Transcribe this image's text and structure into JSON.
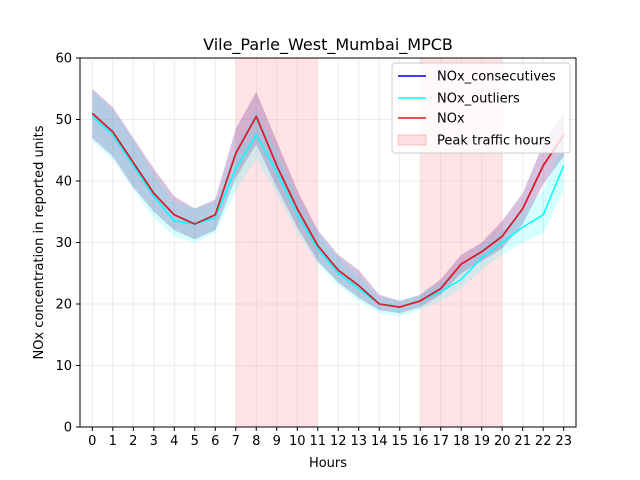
{
  "chart_data": {
    "type": "line",
    "title": "Vile_Parle_West_Mumbai_MPCB",
    "xlabel": "Hours",
    "ylabel": "NOx concentration in reported units",
    "xlim": [
      -0.6,
      23.6
    ],
    "ylim": [
      0,
      60
    ],
    "x": [
      0,
      1,
      2,
      3,
      4,
      5,
      6,
      7,
      8,
      9,
      10,
      11,
      12,
      13,
      14,
      15,
      16,
      17,
      18,
      19,
      20,
      21,
      22,
      23
    ],
    "x_tick_labels": [
      "0",
      "1",
      "2",
      "3",
      "4",
      "5",
      "6",
      "7",
      "8",
      "9",
      "10",
      "11",
      "12",
      "13",
      "14",
      "15",
      "16",
      "17",
      "18",
      "19",
      "20",
      "21",
      "22",
      "23"
    ],
    "y_ticks": [
      0,
      10,
      20,
      30,
      40,
      50,
      60
    ],
    "y_tick_labels": [
      "0",
      "10",
      "20",
      "30",
      "40",
      "50",
      "60"
    ],
    "grid": true,
    "legend_position": "top-right",
    "peak_hours": [
      [
        7,
        11
      ],
      [
        16,
        20
      ]
    ],
    "series": [
      {
        "name": "NOx_consecutives",
        "color": "#0000ff",
        "values": [
          51,
          48,
          43,
          38,
          34.5,
          33,
          34.5,
          44.5,
          50.5,
          42.5,
          35.5,
          29.5,
          25.5,
          23,
          20,
          19.5,
          20.5,
          22.5,
          26.5,
          28.5,
          31,
          35.5,
          42.5,
          47.5
        ],
        "lower": [
          47,
          44,
          39,
          35,
          32,
          30.5,
          32,
          40.5,
          46,
          39,
          32.5,
          27,
          23.5,
          21,
          19,
          18.5,
          19.5,
          21.5,
          25,
          27,
          29,
          33,
          39.5,
          44
        ],
        "upper": [
          55,
          52,
          47,
          42,
          37.5,
          35.5,
          37,
          48.5,
          54.5,
          46.5,
          38.5,
          32,
          28,
          25.5,
          21.5,
          20.5,
          21.5,
          24,
          28,
          30,
          33.5,
          38,
          46,
          51
        ]
      },
      {
        "name": "NOx_outliers",
        "color": "#00ffff",
        "values": [
          50.5,
          47.5,
          42.5,
          37.5,
          33.5,
          33,
          34,
          42,
          47.5,
          41.5,
          34.5,
          29,
          25,
          22.5,
          20,
          19.5,
          20.5,
          22,
          24,
          27.5,
          30,
          32.5,
          34.5,
          42.5
        ],
        "lower": [
          46.5,
          43.5,
          38.5,
          34,
          31,
          30,
          31.5,
          38.5,
          43.5,
          38,
          31.5,
          26.5,
          23,
          20.5,
          18.5,
          18,
          19,
          20.5,
          22.5,
          25.5,
          28,
          30,
          31.5,
          38.5
        ],
        "upper": [
          54.5,
          51.5,
          46.5,
          41,
          36.5,
          35.5,
          36.5,
          45.5,
          51.5,
          45,
          37.5,
          31.5,
          27.5,
          24.5,
          21,
          20.5,
          21.5,
          23.5,
          26,
          29.5,
          32,
          35,
          38.5,
          46.5
        ]
      },
      {
        "name": "NOx",
        "color": "#e41a1c",
        "values": [
          51,
          48,
          43,
          38,
          34.5,
          33,
          34.5,
          44.5,
          50.5,
          42.5,
          35.5,
          29.5,
          25.5,
          23,
          20,
          19.5,
          20.5,
          22.5,
          26.5,
          28.5,
          31,
          35.5,
          42.5,
          47.5
        ]
      }
    ],
    "legend": {
      "entries": [
        "NOx_consecutives",
        "NOx_outliers",
        "NOx",
        "Peak traffic hours"
      ]
    }
  }
}
